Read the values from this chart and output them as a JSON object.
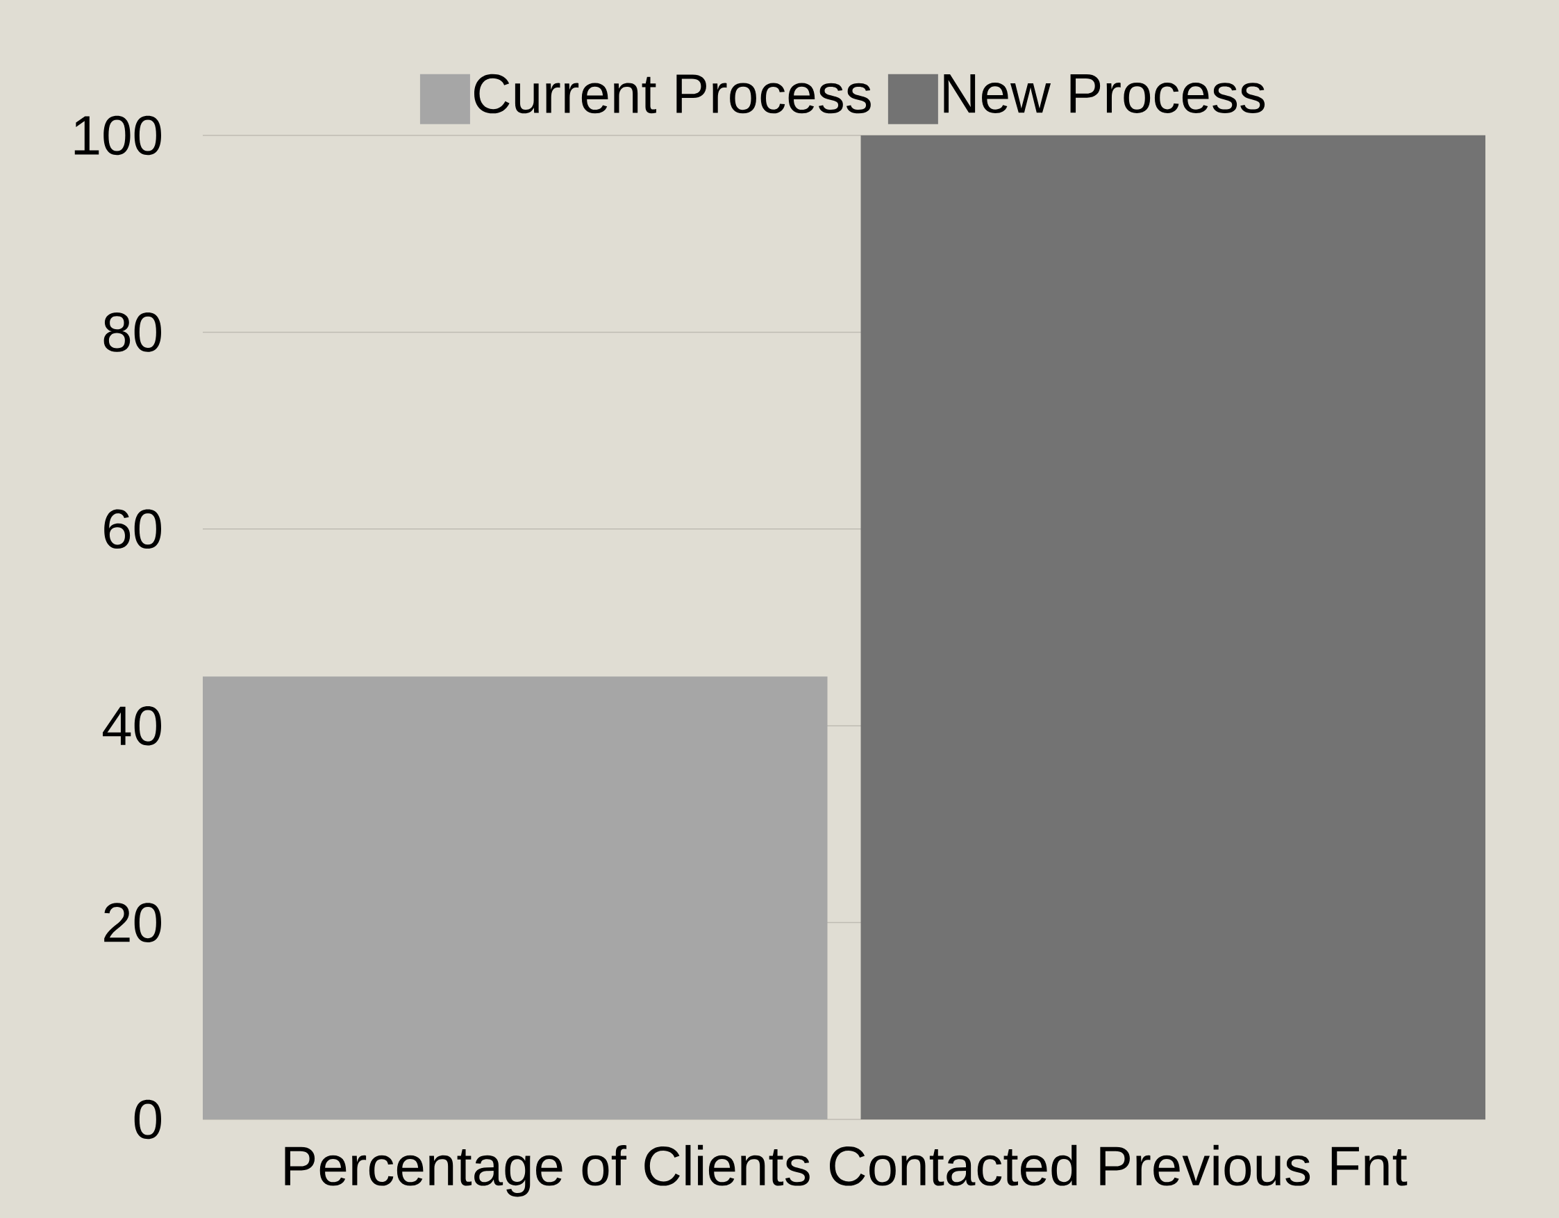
{
  "chart_data": {
    "type": "bar",
    "categories": [
      "Percentage of Clients Contacted Previous Fnt"
    ],
    "series": [
      {
        "name": "Current Process",
        "color": "#a6a6a6",
        "values": [
          45
        ]
      },
      {
        "name": "New Process",
        "color": "#737373",
        "values": [
          100
        ]
      }
    ],
    "ylim": [
      0,
      100
    ],
    "yticks": [
      0,
      20,
      40,
      60,
      80,
      100
    ],
    "grid": "y",
    "legend": "top"
  }
}
